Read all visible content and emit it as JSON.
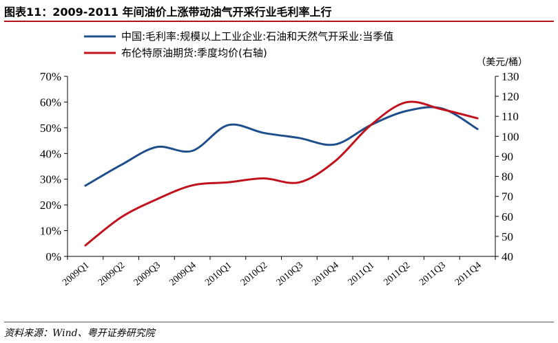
{
  "figure": {
    "title": "图表11：2009-2011 年间油价上涨带动油气开采行业毛利率上行",
    "source": "资料来源：Wind、粤开证券研究院",
    "right_axis_unit": "（美元/桶）"
  },
  "chart_data": {
    "type": "line",
    "categories": [
      "2009Q1",
      "2009Q2",
      "2009Q3",
      "2009Q4",
      "2010Q1",
      "2010Q2",
      "2010Q3",
      "2010Q4",
      "2011Q1",
      "2011Q2",
      "2011Q3",
      "2011Q4"
    ],
    "series": [
      {
        "name": "中国:毛利率:规模以上工业企业:石油和天然气开采业:当季值",
        "axis": "left",
        "color": "#1f4e8c",
        "values": [
          27.5,
          35.5,
          42.5,
          41.0,
          51.0,
          48.0,
          46.0,
          43.5,
          51.0,
          56.5,
          57.5,
          49.5
        ]
      },
      {
        "name": "布伦特原油期货:季度均价(右轴)",
        "axis": "right",
        "color": "#c0121c",
        "values": [
          45.5,
          59.5,
          68.5,
          75.5,
          77.0,
          79.0,
          77.0,
          87.5,
          105.5,
          117.0,
          113.5,
          109.0
        ]
      }
    ],
    "y_left": {
      "ylim": [
        0,
        70
      ],
      "ticks": [
        0,
        10,
        20,
        30,
        40,
        50,
        60,
        70
      ],
      "tick_labels": [
        "0%",
        "10%",
        "20%",
        "30%",
        "40%",
        "50%",
        "60%",
        "70%"
      ]
    },
    "y_right": {
      "ylim": [
        40,
        130
      ],
      "ticks": [
        40,
        50,
        60,
        70,
        80,
        90,
        100,
        110,
        120,
        130
      ],
      "tick_labels": [
        "40",
        "50",
        "60",
        "70",
        "80",
        "90",
        "100",
        "110",
        "120",
        "130"
      ]
    },
    "grid": false,
    "legend_position": "top"
  }
}
